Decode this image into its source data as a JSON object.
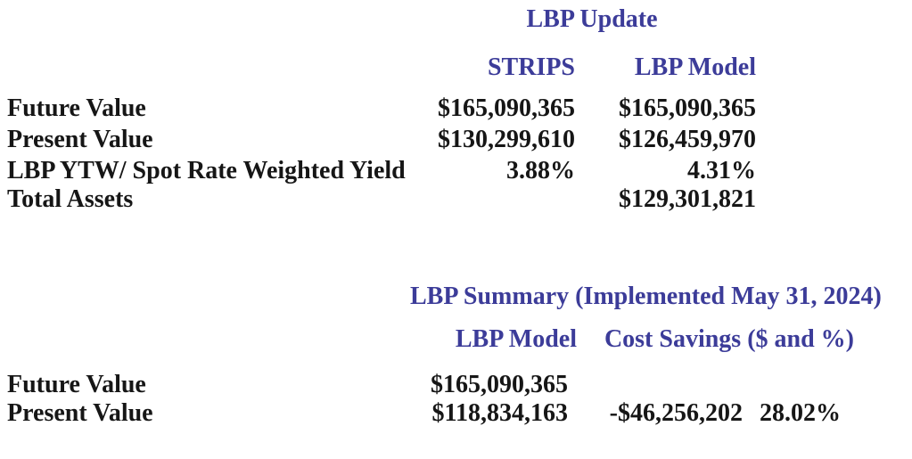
{
  "colors": {
    "accent_blue": "#3C3C99",
    "text_black": "#161616",
    "background": "#FFFFFF"
  },
  "section_update": {
    "title": "LBP Update",
    "columns": [
      "STRIPS",
      "LBP Model"
    ],
    "rows": [
      {
        "label": "Future Value",
        "strips": "$165,090,365",
        "lbp_model": "$165,090,365"
      },
      {
        "label": "Present Value",
        "strips": "$130,299,610",
        "lbp_model": "$126,459,970"
      },
      {
        "label": "LBP YTW/ Spot Rate Weighted Yield",
        "strips": "3.88%",
        "lbp_model": "4.31%"
      },
      {
        "label": "Total Assets",
        "strips": "",
        "lbp_model": "$129,301,821"
      }
    ]
  },
  "section_summary": {
    "title": "LBP Summary (Implemented May 31, 2024)",
    "columns": [
      "LBP Model",
      "Cost Savings ($ and %)"
    ],
    "rows": [
      {
        "label": "Future Value",
        "lbp_model": "$165,090,365",
        "cost_savings_dollar": "",
        "cost_savings_pct": ""
      },
      {
        "label": "Present Value",
        "lbp_model": "$118,834,163",
        "cost_savings_dollar": "-$46,256,202",
        "cost_savings_pct": "28.02%"
      }
    ]
  }
}
